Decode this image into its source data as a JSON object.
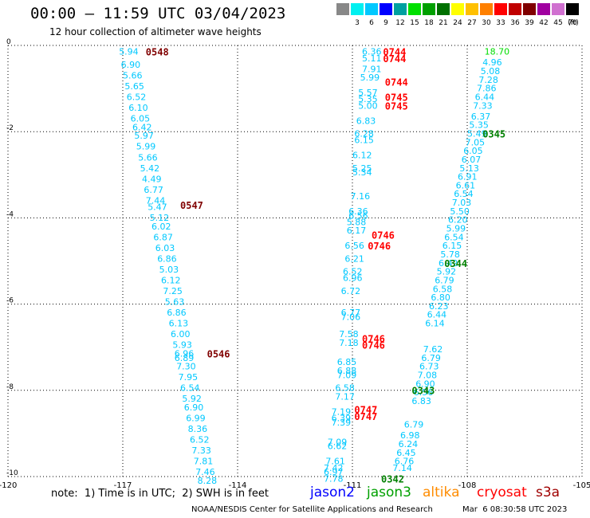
{
  "header": {
    "title": "00:00 — 11:59 UTC 03/04/2023",
    "subtitle": "12 hour collection of altimeter wave heights"
  },
  "scale": {
    "bins": [
      {
        "label": "",
        "color": "#888888"
      },
      {
        "label": "3",
        "color": "#00f0f0"
      },
      {
        "label": "6",
        "color": "#00c8ff"
      },
      {
        "label": "9",
        "color": "#0000ff"
      },
      {
        "label": "12",
        "color": "#00a0a0"
      },
      {
        "label": "15",
        "color": "#00e000"
      },
      {
        "label": "18",
        "color": "#00a000"
      },
      {
        "label": "21",
        "color": "#007000"
      },
      {
        "label": "24",
        "color": "#ffff00"
      },
      {
        "label": "27",
        "color": "#ffc000"
      },
      {
        "label": "30",
        "color": "#ff8000"
      },
      {
        "label": "33",
        "color": "#ff0000"
      },
      {
        "label": "36",
        "color": "#c00000"
      },
      {
        "label": "39",
        "color": "#800000"
      },
      {
        "label": "42",
        "color": "#a000a0"
      },
      {
        "label": "45",
        "color": "#d070d0"
      },
      {
        "label": "70",
        "color": "#000000"
      }
    ],
    "unit": "(ft)"
  },
  "note": "note:  1) Time is in UTC;  2) SWH is in feet",
  "satellites": [
    {
      "name": "jason2",
      "color": "#0000ff"
    },
    {
      "name": "jason3",
      "color": "#00a000"
    },
    {
      "name": "altika",
      "color": "#ff8c00"
    },
    {
      "name": "cryosat",
      "color": "#ff0000"
    },
    {
      "name": "s3a",
      "color": "#a00000"
    }
  ],
  "footer": {
    "credit": "NOAA/NESDIS Center for Satellite Applications and Research",
    "timestamp": "Mar  6 08:30:58 UTC 2023"
  },
  "chart_data": {
    "type": "scatter",
    "xlim": [
      -120,
      -105
    ],
    "ylim": [
      -10,
      0
    ],
    "xticks": [
      -120,
      -117,
      -114,
      -111,
      -108,
      -105
    ],
    "yticks": [
      0,
      -2,
      -4,
      -6,
      -8,
      -10
    ],
    "grid": true,
    "colors": {
      "swh": "#00c8ff",
      "time_s3a": "#800000",
      "time_cryosat": "#ff0000",
      "time_jason3": "#008000",
      "swh_bright": "#00dd00"
    },
    "tracks": [
      {
        "name": "track_s3a_05",
        "time_color_key": "time_s3a",
        "times": [
          {
            "text": "0548",
            "x": -116.4,
            "y": -0.05
          },
          {
            "text": "0547",
            "x": -115.5,
            "y": -3.6
          },
          {
            "text": "0546",
            "x": -114.8,
            "y": -7.05
          }
        ],
        "points": [
          {
            "v": "5.94",
            "x": -117.1,
            "y": -0.05
          },
          {
            "v": "6.90",
            "x": -117.05,
            "y": -0.35
          },
          {
            "v": "5.66",
            "x": -117.0,
            "y": -0.6
          },
          {
            "v": "5.65",
            "x": -116.95,
            "y": -0.85
          },
          {
            "v": "6.52",
            "x": -116.9,
            "y": -1.1
          },
          {
            "v": "6.10",
            "x": -116.85,
            "y": -1.35
          },
          {
            "v": "6.05",
            "x": -116.8,
            "y": -1.6
          },
          {
            "v": "6.42",
            "x": -116.75,
            "y": -1.8
          },
          {
            "v": "5.97",
            "x": -116.7,
            "y": -2.0
          },
          {
            "v": "5.99",
            "x": -116.65,
            "y": -2.25
          },
          {
            "v": "5.66",
            "x": -116.6,
            "y": -2.5
          },
          {
            "v": "5.42",
            "x": -116.55,
            "y": -2.75
          },
          {
            "v": "4.49",
            "x": -116.5,
            "y": -3.0
          },
          {
            "v": "6.77",
            "x": -116.45,
            "y": -3.25
          },
          {
            "v": "7.44",
            "x": -116.4,
            "y": -3.5
          },
          {
            "v": "5.47",
            "x": -116.35,
            "y": -3.65
          },
          {
            "v": "5.12",
            "x": -116.3,
            "y": -3.9
          },
          {
            "v": "6.02",
            "x": -116.25,
            "y": -4.1
          },
          {
            "v": "6.87",
            "x": -116.2,
            "y": -4.35
          },
          {
            "v": "6.03",
            "x": -116.15,
            "y": -4.6
          },
          {
            "v": "6.86",
            "x": -116.1,
            "y": -4.85
          },
          {
            "v": "5.03",
            "x": -116.05,
            "y": -5.1
          },
          {
            "v": "6.12",
            "x": -116.0,
            "y": -5.35
          },
          {
            "v": "7.25",
            "x": -115.95,
            "y": -5.6
          },
          {
            "v": "5.63",
            "x": -115.9,
            "y": -5.85
          },
          {
            "v": "6.86",
            "x": -115.85,
            "y": -6.1
          },
          {
            "v": "6.13",
            "x": -115.8,
            "y": -6.35
          },
          {
            "v": "6.00",
            "x": -115.75,
            "y": -6.6
          },
          {
            "v": "5.93",
            "x": -115.7,
            "y": -6.85
          },
          {
            "v": "6.96",
            "x": -115.65,
            "y": -7.05
          },
          {
            "v": "6.89",
            "x": -115.65,
            "y": -7.15
          },
          {
            "v": "7.30",
            "x": -115.6,
            "y": -7.35
          },
          {
            "v": "7.95",
            "x": -115.55,
            "y": -7.6
          },
          {
            "v": "6.54",
            "x": -115.5,
            "y": -7.85
          },
          {
            "v": "5.92",
            "x": -115.45,
            "y": -8.1
          },
          {
            "v": "6.90",
            "x": -115.4,
            "y": -8.3
          },
          {
            "v": "6.99",
            "x": -115.35,
            "y": -8.55
          },
          {
            "v": "8.36",
            "x": -115.3,
            "y": -8.8
          },
          {
            "v": "6.52",
            "x": -115.25,
            "y": -9.05
          },
          {
            "v": "7.33",
            "x": -115.2,
            "y": -9.3
          },
          {
            "v": "7.81",
            "x": -115.15,
            "y": -9.55
          },
          {
            "v": "7.46",
            "x": -115.1,
            "y": -9.8
          },
          {
            "v": "8.28",
            "x": -115.05,
            "y": -10.0
          }
        ]
      },
      {
        "name": "track_cryosat_07",
        "time_color_key": "time_cryosat",
        "times": [
          {
            "text": "0744",
            "x": -110.2,
            "y": -0.05
          },
          {
            "text": "0744",
            "x": -110.2,
            "y": -0.2
          },
          {
            "text": "0744",
            "x": -110.15,
            "y": -0.75
          },
          {
            "text": "0745",
            "x": -110.15,
            "y": -1.1
          },
          {
            "text": "0745",
            "x": -110.15,
            "y": -1.3
          },
          {
            "text": "0746",
            "x": -110.5,
            "y": -4.3
          },
          {
            "text": "0746",
            "x": -110.6,
            "y": -4.55
          },
          {
            "text": "0746",
            "x": -110.75,
            "y": -6.7
          },
          {
            "text": "0746",
            "x": -110.75,
            "y": -6.85
          },
          {
            "text": "0747",
            "x": -110.95,
            "y": -8.35
          },
          {
            "text": "0747",
            "x": -110.95,
            "y": -8.5
          }
        ],
        "points": [
          {
            "v": "6.36",
            "x": -110.75,
            "y": -0.05
          },
          {
            "v": "5.11",
            "x": -110.75,
            "y": -0.2
          },
          {
            "v": "7.91",
            "x": -110.75,
            "y": -0.45
          },
          {
            "v": "5.99",
            "x": -110.8,
            "y": -0.65
          },
          {
            "v": "5.57",
            "x": -110.85,
            "y": -1.0
          },
          {
            "v": "5.35",
            "x": -110.85,
            "y": -1.15
          },
          {
            "v": "5.00",
            "x": -110.85,
            "y": -1.3
          },
          {
            "v": "6.83",
            "x": -110.9,
            "y": -1.65
          },
          {
            "v": "6.28",
            "x": -110.95,
            "y": -1.95
          },
          {
            "v": "6.15",
            "x": -110.95,
            "y": -2.1
          },
          {
            "v": "6.12",
            "x": -111.0,
            "y": -2.45
          },
          {
            "v": "5.25",
            "x": -111.0,
            "y": -2.75
          },
          {
            "v": "5.34",
            "x": -111.0,
            "y": -2.85
          },
          {
            "v": "7.16",
            "x": -111.05,
            "y": -3.4
          },
          {
            "v": "6.36",
            "x": -111.1,
            "y": -3.75
          },
          {
            "v": "6.56",
            "x": -111.1,
            "y": -3.85
          },
          {
            "v": "5.88",
            "x": -111.15,
            "y": -4.0
          },
          {
            "v": "6.17",
            "x": -111.15,
            "y": -4.2
          },
          {
            "v": "6.56",
            "x": -111.2,
            "y": -4.55
          },
          {
            "v": "6.21",
            "x": -111.2,
            "y": -4.85
          },
          {
            "v": "6.52",
            "x": -111.25,
            "y": -5.15
          },
          {
            "v": "6.96",
            "x": -111.25,
            "y": -5.3
          },
          {
            "v": "6.72",
            "x": -111.3,
            "y": -5.6
          },
          {
            "v": "6.77",
            "x": -111.3,
            "y": -6.1
          },
          {
            "v": "7.06",
            "x": -111.3,
            "y": -6.2
          },
          {
            "v": "7.58",
            "x": -111.35,
            "y": -6.6
          },
          {
            "v": "7.18",
            "x": -111.35,
            "y": -6.8
          },
          {
            "v": "6.85",
            "x": -111.4,
            "y": -7.25
          },
          {
            "v": "6.88",
            "x": -111.4,
            "y": -7.45
          },
          {
            "v": "7.09",
            "x": -111.4,
            "y": -7.55
          },
          {
            "v": "6.58",
            "x": -111.45,
            "y": -7.85
          },
          {
            "v": "7.17",
            "x": -111.45,
            "y": -8.05
          },
          {
            "v": "7.19",
            "x": -111.55,
            "y": -8.4
          },
          {
            "v": "6.39",
            "x": -111.55,
            "y": -8.55
          },
          {
            "v": "7.39",
            "x": -111.55,
            "y": -8.65
          },
          {
            "v": "7.09",
            "x": -111.65,
            "y": -9.1
          },
          {
            "v": "6.62",
            "x": -111.65,
            "y": -9.2
          },
          {
            "v": "7.61",
            "x": -111.7,
            "y": -9.55
          },
          {
            "v": "7.42",
            "x": -111.75,
            "y": -9.7
          },
          {
            "v": "6.97",
            "x": -111.75,
            "y": -9.8
          },
          {
            "v": "7.78",
            "x": -111.75,
            "y": -9.95
          }
        ]
      },
      {
        "name": "track_jason3_03",
        "time_color_key": "time_jason3",
        "times": [
          {
            "text": "0345",
            "x": -107.6,
            "y": -1.95
          },
          {
            "text": "0344",
            "x": -108.6,
            "y": -4.95
          },
          {
            "text": "0343",
            "x": -109.45,
            "y": -7.9
          },
          {
            "text": "0342",
            "x": -110.25,
            "y": -9.95
          }
        ],
        "points": [
          {
            "v": "18.70",
            "x": -107.55,
            "y": -0.05,
            "bright": true
          },
          {
            "v": "4.96",
            "x": -107.6,
            "y": -0.3
          },
          {
            "v": "5.08",
            "x": -107.65,
            "y": -0.5
          },
          {
            "v": "7.28",
            "x": -107.7,
            "y": -0.7
          },
          {
            "v": "7.86",
            "x": -107.75,
            "y": -0.9
          },
          {
            "v": "6.44",
            "x": -107.8,
            "y": -1.1
          },
          {
            "v": "7.33",
            "x": -107.85,
            "y": -1.3
          },
          {
            "v": "6.37",
            "x": -107.9,
            "y": -1.55
          },
          {
            "v": "5.35",
            "x": -107.95,
            "y": -1.75
          },
          {
            "v": "5.49",
            "x": -108.0,
            "y": -1.95
          },
          {
            "v": "7.05",
            "x": -108.05,
            "y": -2.15
          },
          {
            "v": "6.05",
            "x": -108.1,
            "y": -2.35
          },
          {
            "v": "6.07",
            "x": -108.15,
            "y": -2.55
          },
          {
            "v": "5.13",
            "x": -108.2,
            "y": -2.75
          },
          {
            "v": "6.91",
            "x": -108.25,
            "y": -2.95
          },
          {
            "v": "6.61",
            "x": -108.3,
            "y": -3.15
          },
          {
            "v": "6.54",
            "x": -108.35,
            "y": -3.35
          },
          {
            "v": "7.03",
            "x": -108.4,
            "y": -3.55
          },
          {
            "v": "5.50",
            "x": -108.45,
            "y": -3.75
          },
          {
            "v": "6.20",
            "x": -108.5,
            "y": -3.95
          },
          {
            "v": "5.99",
            "x": -108.55,
            "y": -4.15
          },
          {
            "v": "6.54",
            "x": -108.6,
            "y": -4.35
          },
          {
            "v": "6.15",
            "x": -108.65,
            "y": -4.55
          },
          {
            "v": "5.78",
            "x": -108.7,
            "y": -4.75
          },
          {
            "v": "6.42",
            "x": -108.75,
            "y": -4.95
          },
          {
            "v": "5.92",
            "x": -108.8,
            "y": -5.15
          },
          {
            "v": "6.79",
            "x": -108.85,
            "y": -5.35
          },
          {
            "v": "6.58",
            "x": -108.9,
            "y": -5.55
          },
          {
            "v": "6.80",
            "x": -108.95,
            "y": -5.75
          },
          {
            "v": "6.23",
            "x": -109.0,
            "y": -5.95
          },
          {
            "v": "6.44",
            "x": -109.05,
            "y": -6.15
          },
          {
            "v": "6.14",
            "x": -109.1,
            "y": -6.35
          },
          {
            "v": "7.62",
            "x": -109.15,
            "y": -6.95
          },
          {
            "v": "6.79",
            "x": -109.2,
            "y": -7.15
          },
          {
            "v": "6.73",
            "x": -109.25,
            "y": -7.35
          },
          {
            "v": "7.08",
            "x": -109.3,
            "y": -7.55
          },
          {
            "v": "6.90",
            "x": -109.35,
            "y": -7.75
          },
          {
            "v": "6.56",
            "x": -109.4,
            "y": -7.95
          },
          {
            "v": "6.83",
            "x": -109.45,
            "y": -8.15
          },
          {
            "v": "6.79",
            "x": -109.65,
            "y": -8.7
          },
          {
            "v": "6.98",
            "x": -109.75,
            "y": -8.95
          },
          {
            "v": "6.24",
            "x": -109.8,
            "y": -9.15
          },
          {
            "v": "6.45",
            "x": -109.85,
            "y": -9.35
          },
          {
            "v": "6.76",
            "x": -109.9,
            "y": -9.55
          },
          {
            "v": "7.14",
            "x": -109.95,
            "y": -9.7
          }
        ]
      }
    ]
  }
}
